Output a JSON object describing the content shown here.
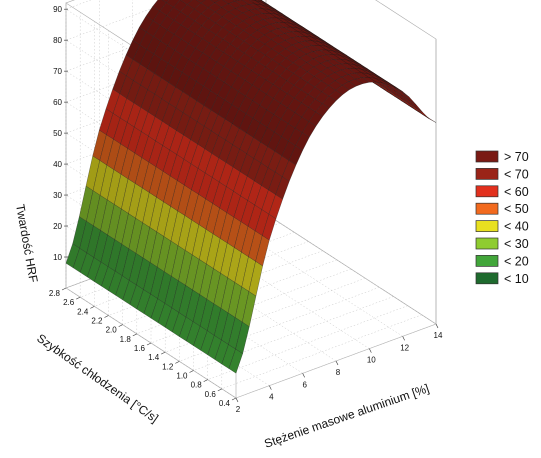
{
  "chart_data": {
    "type": "surface3d",
    "x_axis": {
      "label": "Stężenie masowe aluminium [%]",
      "ticks": [
        2,
        4,
        6,
        8,
        10,
        12,
        14
      ],
      "range": [
        2,
        14
      ]
    },
    "y_axis": {
      "label": "Szybkość chłodzenia [°C/s]",
      "ticks": [
        2.8,
        2.6,
        2.4,
        2.2,
        2.0,
        1.8,
        1.6,
        1.4,
        1.2,
        1.0,
        0.8,
        0.6,
        0.4
      ],
      "tick_labels": [
        "2.8",
        "2.6",
        "2.4",
        "2.2",
        "2.0",
        "1.8",
        "1.6",
        "1.4",
        "1.2",
        "1.0",
        "0.8",
        "0.6",
        "0.4"
      ],
      "range": [
        0.4,
        2.8
      ]
    },
    "z_axis": {
      "label": "Twardość HRF",
      "ticks": [
        10,
        20,
        30,
        40,
        50,
        60,
        70,
        80,
        90
      ],
      "range": [
        0,
        92
      ]
    },
    "surface": {
      "x": [
        2,
        4,
        6,
        8,
        10,
        12,
        14
      ],
      "z_at_x": [
        8,
        47,
        72,
        84,
        86,
        79,
        65
      ],
      "note_y_dependence": "nearly constant along cooling rate axis"
    },
    "legend": {
      "position": "right",
      "entries": [
        {
          "label": "> 70",
          "color": "#7a1a14"
        },
        {
          "label": "< 70",
          "color": "#9a2418"
        },
        {
          "label": "< 60",
          "color": "#e2301d"
        },
        {
          "label": "< 50",
          "color": "#f26a1e"
        },
        {
          "label": "< 40",
          "color": "#e8e020"
        },
        {
          "label": "< 30",
          "color": "#8fcc30"
        },
        {
          "label": "< 20",
          "color": "#42a63a"
        },
        {
          "label": "< 10",
          "color": "#1e6a2e"
        }
      ]
    },
    "grid": true
  }
}
